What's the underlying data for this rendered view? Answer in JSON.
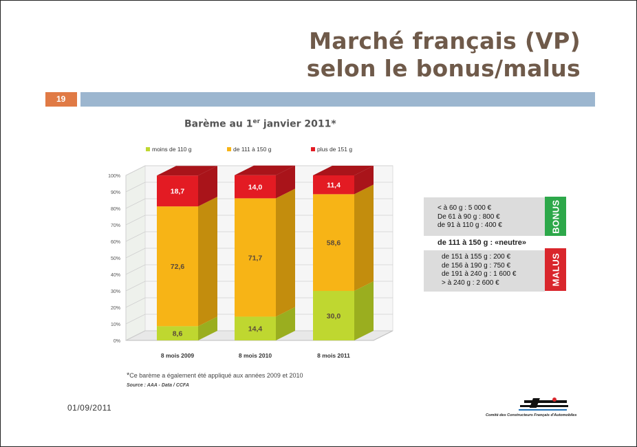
{
  "slide": {
    "title_line1": "Marché français (VP)",
    "title_line2": "selon le bonus/malus",
    "number": "19",
    "date": "01/09/2011",
    "footnote_mark": "*",
    "footnote": "Ce barème a également été appliqué aux années 2009 et 2010",
    "source": "Source : AAA - Data / CCFA",
    "logo_text": "Comité des Constructeurs Français d'Automobiles"
  },
  "chart_title": {
    "main": "Barème au 1",
    "sup": "er",
    "rest": " janvier 2011*"
  },
  "chart_data": {
    "type": "bar",
    "stacked": true,
    "percent": true,
    "categories": [
      "8 mois 2009",
      "8 mois 2010",
      "8 mois 2011"
    ],
    "series": [
      {
        "name": "moins de 110 g",
        "color": "#bfd730",
        "side": "#9aae1f",
        "values": [
          8.6,
          14.4,
          30.0
        ],
        "labels": [
          "8,6",
          "14,4",
          "30,0"
        ]
      },
      {
        "name": "de 111 à 150 g",
        "color": "#f7b416",
        "side": "#c38d0d",
        "values": [
          72.6,
          71.7,
          58.6
        ],
        "labels": [
          "72,6",
          "71,7",
          "58,6"
        ]
      },
      {
        "name": "plus de 151 g",
        "color": "#e31b23",
        "side": "#a9141a",
        "values": [
          18.7,
          14.0,
          11.4
        ],
        "labels": [
          "18,7",
          "14,0",
          "11,4"
        ]
      }
    ],
    "yticks": [
      "0%",
      "10%",
      "20%",
      "30%",
      "40%",
      "50%",
      "60%",
      "70%",
      "80%",
      "90%",
      "100%"
    ],
    "ylim": [
      0,
      100
    ],
    "legend_position": "top"
  },
  "bonus": {
    "tag": "BONUS",
    "lines": [
      "< à 60 g : 5 000 €",
      "De 61 à 90 g : 800 €",
      "de 91 à 110 g : 400 €"
    ]
  },
  "neutre": "de 111 à 150 g : «neutre»",
  "malus": {
    "tag": "MALUS",
    "lines": [
      "de 151 à 155 g : 200 €",
      "de 156 à 190 g : 750 €",
      "de 191 à 240 g : 1 600 €",
      "> à 240 g : 2 600 €"
    ]
  },
  "colors": {
    "accent": "#e07a45",
    "rule": "#9cb6cf",
    "title": "#6f5a4a",
    "bonus": "#2da84a",
    "malus": "#d9262c"
  }
}
